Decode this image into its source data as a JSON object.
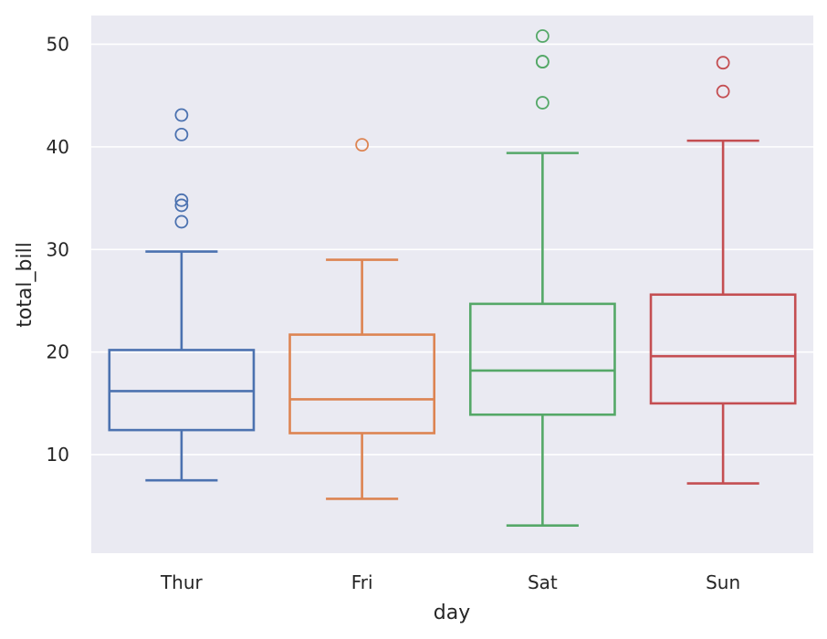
{
  "chart_data": {
    "type": "box",
    "title": "",
    "xlabel": "day",
    "ylabel": "total_bill",
    "ylim": [
      0.4,
      52.8
    ],
    "yticks": [
      10,
      20,
      30,
      40,
      50
    ],
    "ytick_labels": [
      "10",
      "20",
      "30",
      "40",
      "50"
    ],
    "grid": "horizontal",
    "background": "#eaeaf2",
    "categories": [
      "Thur",
      "Fri",
      "Sat",
      "Sun"
    ],
    "boxes": [
      {
        "name": "Thur",
        "color": "#4c72b0",
        "whisker_low": 7.5,
        "q1": 12.4,
        "median": 16.2,
        "q3": 20.2,
        "whisker_high": 29.8,
        "outliers": [
          43.1,
          41.2,
          34.8,
          34.3,
          32.7
        ]
      },
      {
        "name": "Fri",
        "color": "#dd8452",
        "whisker_low": 5.7,
        "q1": 12.1,
        "median": 15.4,
        "q3": 21.7,
        "whisker_high": 29.0,
        "outliers": [
          40.2
        ]
      },
      {
        "name": "Sat",
        "color": "#55a868",
        "whisker_low": 3.1,
        "q1": 13.9,
        "median": 18.2,
        "q3": 24.7,
        "whisker_high": 39.4,
        "outliers": [
          50.8,
          48.3,
          48.3,
          44.3
        ]
      },
      {
        "name": "Sun",
        "color": "#c44e52",
        "whisker_low": 7.2,
        "q1": 15.0,
        "median": 19.6,
        "q3": 25.6,
        "whisker_high": 40.6,
        "outliers": [
          48.2,
          45.4
        ]
      }
    ]
  }
}
